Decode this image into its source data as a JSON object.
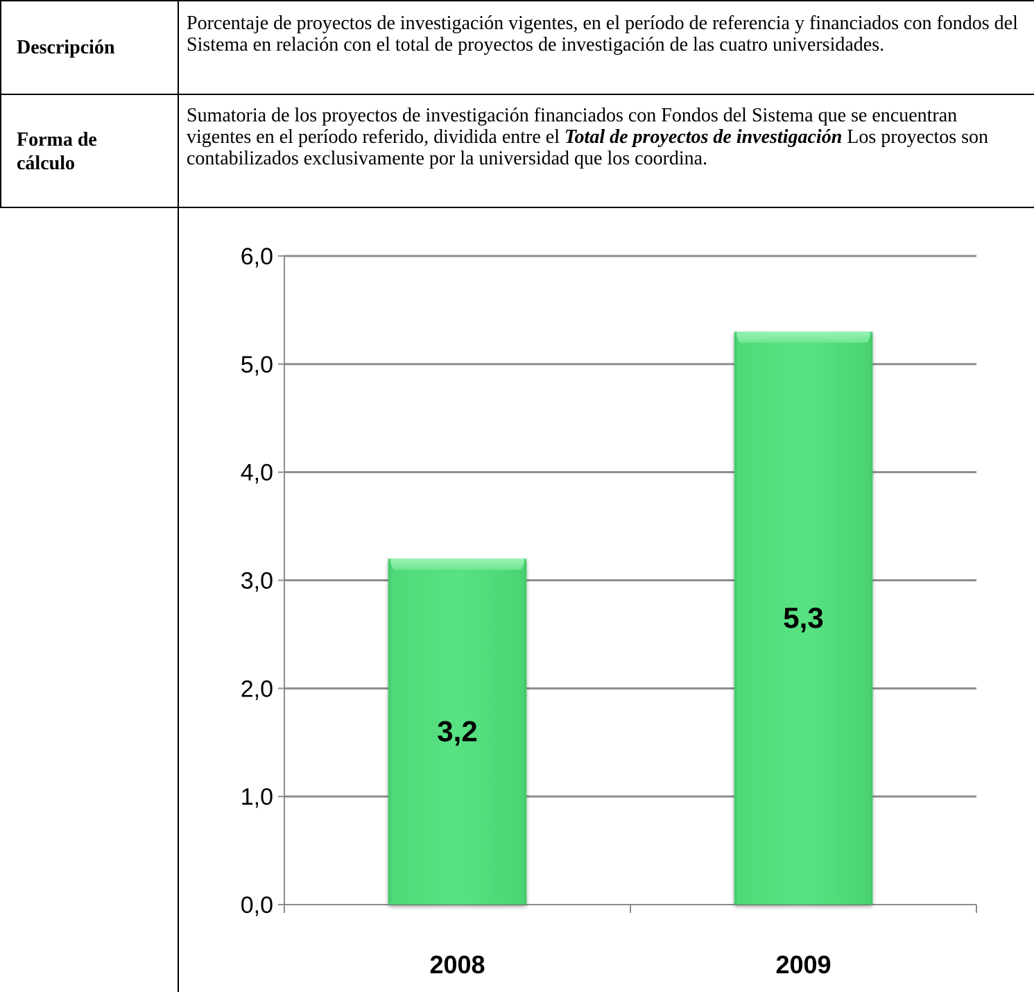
{
  "rows": [
    {
      "label": "Descripción",
      "text": "Porcentaje de proyectos de investigación vigentes, en el período de referencia y financiados con fondos del Sistema en relación con el total de proyectos de investigación de las cuatro universidades."
    },
    {
      "label_line1": "Forma de",
      "label_line2": "cálculo",
      "text_part1": "Sumatoria de los proyectos de investigación financiados con Fondos del Sistema que se encuentran vigentes en el período referido, dividida entre el ",
      "text_emphasis": "Total de proyectos de investigación",
      "text_part2": "  Los proyectos son contabilizados exclusivamente por la universidad que los coordina."
    }
  ],
  "chart_data": {
    "type": "bar",
    "categories": [
      "2008",
      "2009"
    ],
    "values": [
      3.2,
      5.3
    ],
    "data_labels": [
      "3,2",
      "5,3"
    ],
    "y_ticks": [
      "0,0",
      "1,0",
      "2,0",
      "3,0",
      "4,0",
      "5,0",
      "6,0"
    ],
    "ylim": [
      0,
      6
    ],
    "grid": true,
    "legend": "none",
    "bar_color": "#55e07f",
    "bar_top_color": "#8cf0a8",
    "grid_color": "#8c8c8c"
  }
}
